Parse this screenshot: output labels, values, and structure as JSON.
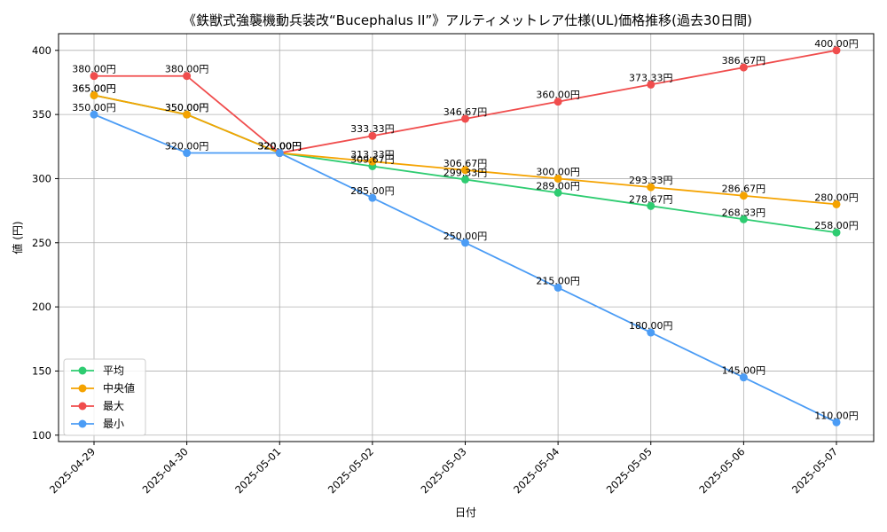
{
  "chart_data": {
    "type": "line",
    "title": "《鉄獣式強襲機動兵装改“Bucephalus II”》アルティメットレア仕様(UL)価格推移(過去30日間)",
    "xlabel": "日付",
    "ylabel": "値 (円)",
    "categories": [
      "2025-04-29",
      "2025-04-30",
      "2025-05-01",
      "2025-05-02",
      "2025-05-03",
      "2025-05-04",
      "2025-05-05",
      "2025-05-06",
      "2025-05-07"
    ],
    "ylim": [
      95,
      413
    ],
    "yticks": [
      100,
      150,
      200,
      250,
      300,
      350,
      400
    ],
    "grid": true,
    "legend_position": "lower-left",
    "value_suffix": "円",
    "series": [
      {
        "name": "平均",
        "color": "#2ecc71",
        "values": [
          365.0,
          350.0,
          320.0,
          309.67,
          299.33,
          289.0,
          278.67,
          268.33,
          258.0
        ]
      },
      {
        "name": "中央値",
        "color": "#f5a300",
        "values": [
          365.0,
          350.0,
          320.0,
          313.33,
          306.67,
          300.0,
          293.33,
          286.67,
          280.0
        ]
      },
      {
        "name": "最大",
        "color": "#f04d4d",
        "values": [
          380.0,
          380.0,
          320.0,
          333.33,
          346.67,
          360.0,
          373.33,
          386.67,
          400.0
        ]
      },
      {
        "name": "最小",
        "color": "#4b9cf5",
        "values": [
          350.0,
          320.0,
          320.0,
          285.0,
          250.0,
          215.0,
          180.0,
          145.0,
          110.0
        ]
      }
    ]
  }
}
